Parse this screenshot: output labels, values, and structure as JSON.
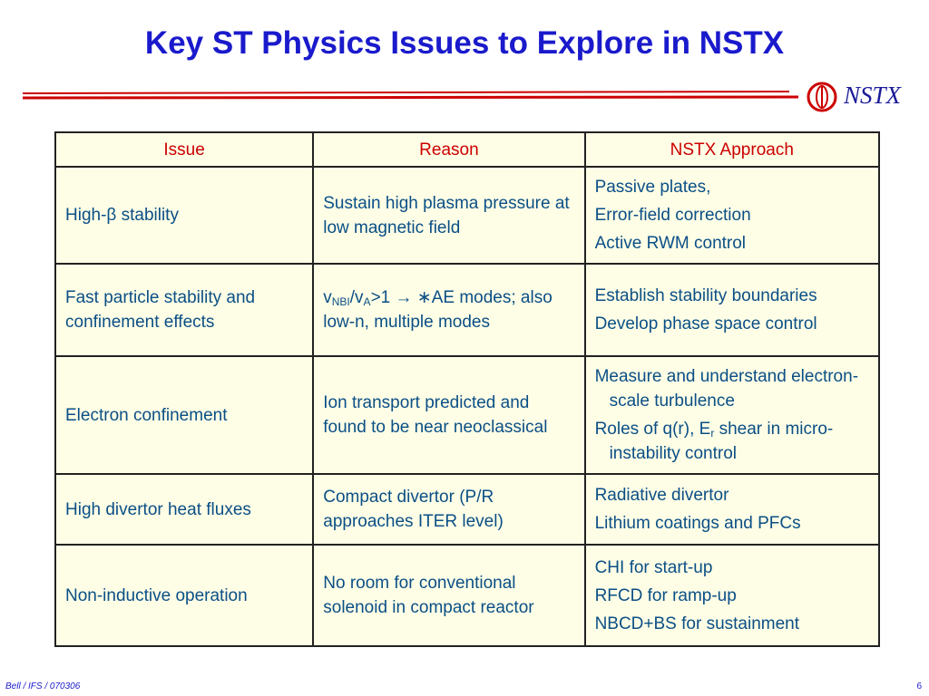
{
  "header": {
    "title": "Key ST Physics Issues to Explore in NSTX",
    "logo": "NSTX"
  },
  "table": {
    "columns": [
      "Issue",
      "Reason",
      "NSTX Approach"
    ],
    "rows": [
      [
        [
          [
            "High-β stability"
          ]
        ],
        [
          [
            "Sustain high plasma pressure at low magnetic field"
          ]
        ],
        [
          [
            "Passive plates,"
          ],
          [
            "Error-field correction"
          ],
          [
            "Active RWM control"
          ]
        ]
      ],
      [
        [
          [
            "Fast particle stability and confinement effects"
          ]
        ],
        [
          [
            "v",
            {
              "sub": "NBI"
            },
            "/v",
            {
              "sub": "A"
            },
            ">1 → ∗AE modes; also low-n, multiple modes"
          ]
        ],
        [
          [
            "Establish stability boundaries"
          ],
          [
            "Develop phase space control"
          ]
        ]
      ],
      [
        [
          [
            "Electron confinement"
          ]
        ],
        [
          [
            "Ion transport predicted and found to be near neoclassical"
          ]
        ],
        [
          [
            "Measure and understand electron-scale turbulence"
          ],
          [
            "Roles of q(r), E",
            {
              "sub": "r"
            },
            " shear in micro-instability control"
          ]
        ]
      ],
      [
        [
          [
            "High divertor heat fluxes"
          ]
        ],
        [
          [
            "Compact divertor (P/R approaches ITER level)"
          ]
        ],
        [
          [
            "Radiative divertor"
          ],
          [
            "Lithium coatings and PFCs"
          ]
        ]
      ],
      [
        [
          [
            "Non-inductive operation"
          ]
        ],
        [
          [
            "No room for conventional solenoid in compact reactor"
          ]
        ],
        [
          [
            "CHI for start-up"
          ],
          [
            "RFCD for ramp-up"
          ],
          [
            "NBCD+BS for sustainment"
          ]
        ]
      ]
    ]
  },
  "footer": {
    "left": "Bell / IFS / 070306",
    "right": "6"
  }
}
